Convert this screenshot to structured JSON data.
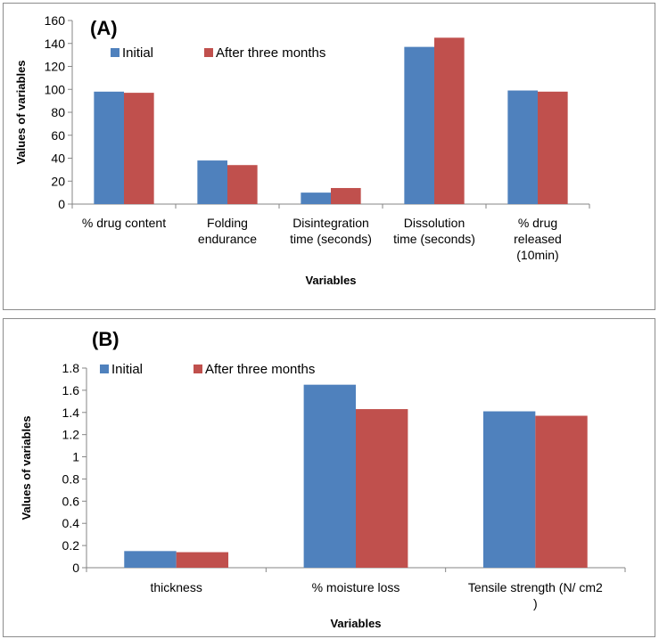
{
  "chart_data": [
    {
      "type": "bar",
      "title": "(A)",
      "xlabel": "Variables",
      "ylabel": "Values of variables",
      "ylim": [
        0,
        160
      ],
      "yticks": [
        0,
        20,
        40,
        60,
        80,
        100,
        120,
        140,
        160
      ],
      "legend_position": "top-left",
      "categories": [
        [
          "% drug content"
        ],
        [
          "Folding",
          "endurance"
        ],
        [
          "Disintegration",
          "time (seconds)"
        ],
        [
          "Dissolution",
          "time (seconds)"
        ],
        [
          "% drug",
          "released",
          "(10min)"
        ]
      ],
      "series": [
        {
          "name": "Initial",
          "color": "#4f81bd",
          "values": [
            98,
            38,
            10,
            137,
            99
          ]
        },
        {
          "name": "After three months",
          "color": "#c0504d",
          "values": [
            97,
            34,
            14,
            145,
            98
          ]
        }
      ]
    },
    {
      "type": "bar",
      "title": "(B)",
      "xlabel": "Variables",
      "ylabel": "Values of variables",
      "ylim": [
        0,
        1.8
      ],
      "yticks": [
        "0",
        "0.2",
        "0.4",
        "0.6",
        "0.8",
        "1",
        "1.2",
        "1.4",
        "1.6",
        "1.8"
      ],
      "legend_position": "top-left",
      "categories": [
        [
          "thickness"
        ],
        [
          "% moisture loss"
        ],
        [
          "Tensile strength  (N/ cm2",
          ")"
        ]
      ],
      "series": [
        {
          "name": "Initial",
          "color": "#4f81bd",
          "values": [
            0.15,
            1.65,
            1.41
          ]
        },
        {
          "name": "After three months",
          "color": "#c0504d",
          "values": [
            0.14,
            1.43,
            1.37
          ]
        }
      ]
    }
  ]
}
